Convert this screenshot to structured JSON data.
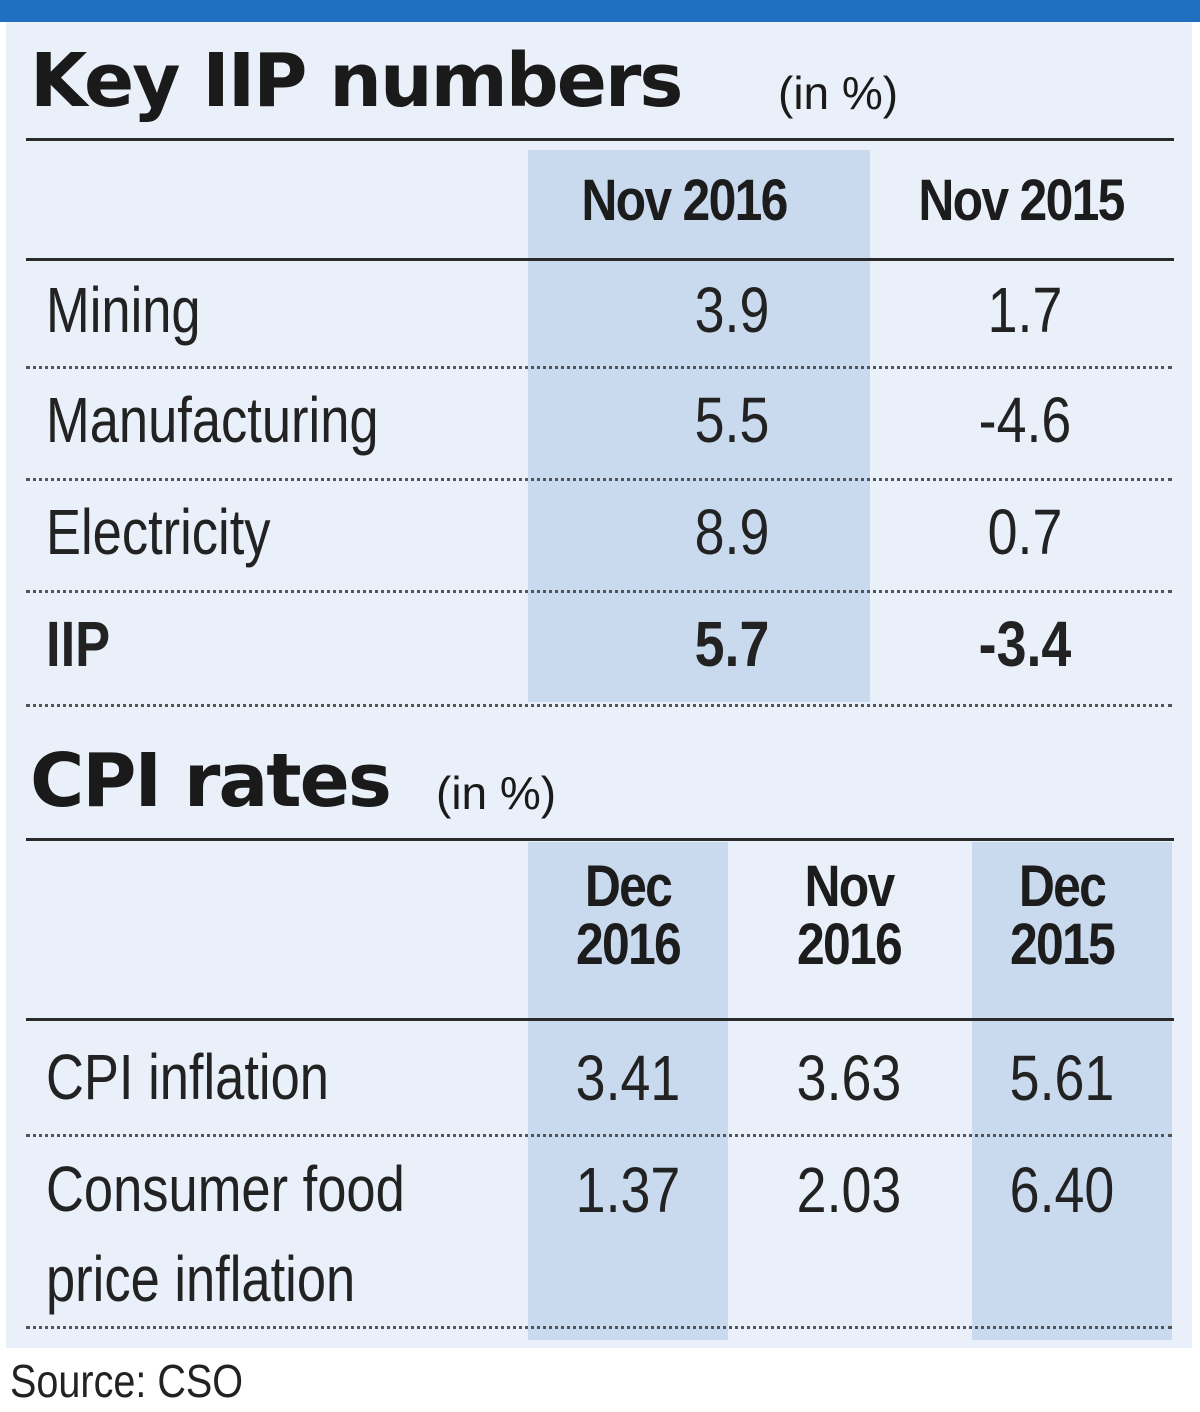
{
  "chart_data": [
    {
      "type": "table",
      "title": "Key IIP numbers",
      "unit": "(in %)",
      "columns": [
        "Nov 2016",
        "Nov 2015"
      ],
      "rows": [
        {
          "label": "Mining",
          "values": [
            "3.9",
            "1.7"
          ]
        },
        {
          "label": "Manufacturing",
          "values": [
            "5.5",
            "-4.6"
          ]
        },
        {
          "label": "Electricity",
          "values": [
            "8.9",
            "0.7"
          ]
        },
        {
          "label": "IIP",
          "values": [
            "5.7",
            "-3.4"
          ],
          "bold": true
        }
      ]
    },
    {
      "type": "table",
      "title": "CPI rates",
      "unit": "(in %)",
      "columns": [
        [
          "Dec",
          "2016"
        ],
        [
          "Nov",
          "2016"
        ],
        [
          "Dec",
          "2015"
        ]
      ],
      "rows": [
        {
          "label": [
            "CPI inflation"
          ],
          "values": [
            "3.41",
            "3.63",
            "5.61"
          ]
        },
        {
          "label": [
            "Consumer food",
            "price inflation"
          ],
          "values": [
            "1.37",
            "2.03",
            "6.40"
          ]
        }
      ]
    }
  ],
  "source": "Source: CSO",
  "colors": {
    "top_bar": "#1e6fc0",
    "panel_bg": "#eaf0f9",
    "highlight_column": "#c9daef"
  }
}
